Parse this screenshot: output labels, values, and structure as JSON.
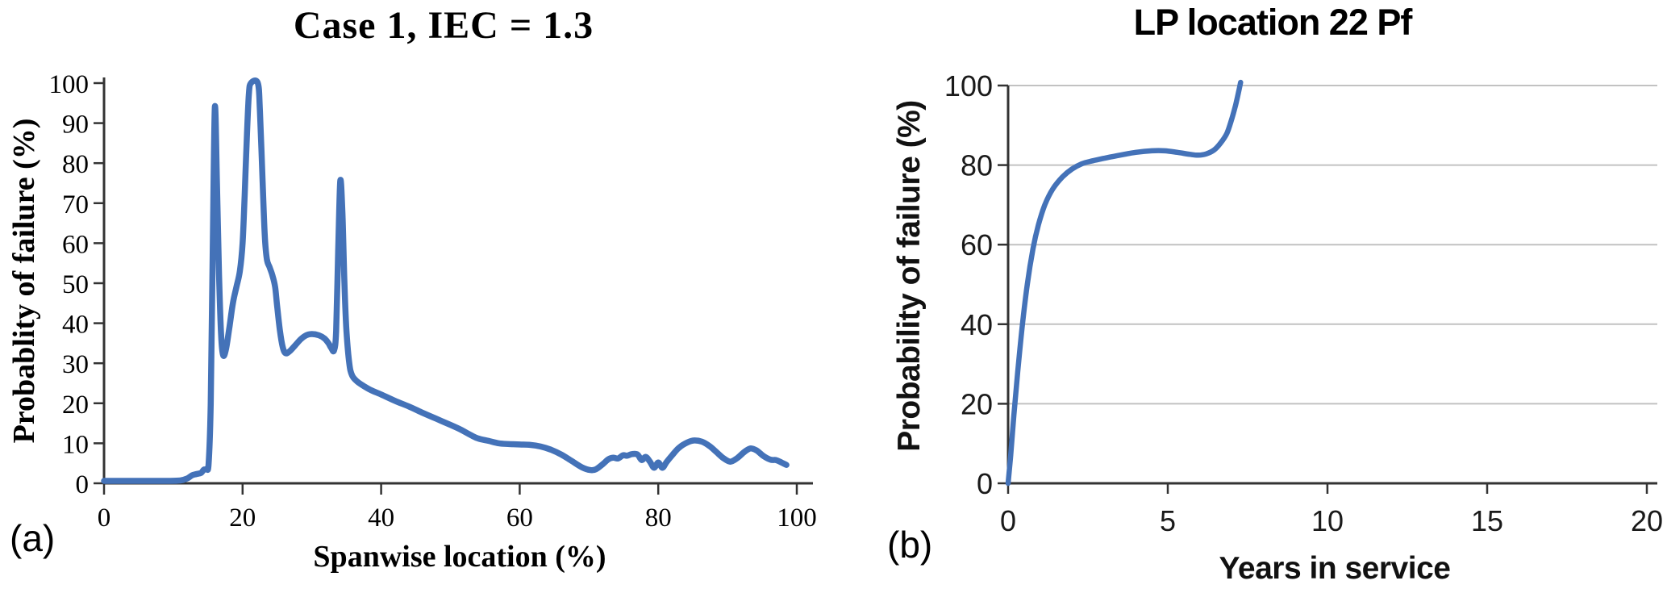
{
  "figure": {
    "background": "#ffffff",
    "line_color": "#4472b8",
    "grid_color": "#c2c2c2",
    "axis_color": "#333333"
  },
  "chart_data": [
    {
      "id": "a",
      "type": "line",
      "panel_label": "(a)",
      "title": "Case 1, IEC = 1.3",
      "xlabel": "Spanwise location (%)",
      "ylabel": "Probablity of failure (%)",
      "xlim": [
        0,
        100
      ],
      "ylim": [
        0,
        100
      ],
      "x_ticks": [
        0,
        20,
        40,
        60,
        80,
        100
      ],
      "y_ticks": [
        0,
        10,
        20,
        30,
        40,
        50,
        60,
        70,
        80,
        90,
        100
      ],
      "grid": "none",
      "legend": "none",
      "line_color": "#4472b8",
      "points": [
        [
          0,
          0.6
        ],
        [
          3,
          0.6
        ],
        [
          6,
          0.6
        ],
        [
          9,
          0.6
        ],
        [
          11,
          0.7
        ],
        [
          12,
          1.2
        ],
        [
          12.7,
          2.0
        ],
        [
          13.3,
          2.3
        ],
        [
          14,
          2.6
        ],
        [
          14.4,
          3.4
        ],
        [
          14.8,
          3.6
        ],
        [
          15.1,
          5
        ],
        [
          15.4,
          20
        ],
        [
          15.7,
          60
        ],
        [
          16,
          94
        ],
        [
          16.3,
          75
        ],
        [
          16.6,
          52
        ],
        [
          16.9,
          37
        ],
        [
          17.2,
          32
        ],
        [
          17.6,
          33.5
        ],
        [
          18.1,
          39
        ],
        [
          18.6,
          45
        ],
        [
          19.1,
          49
        ],
        [
          19.6,
          53
        ],
        [
          20,
          60
        ],
        [
          20.3,
          72
        ],
        [
          20.6,
          86
        ],
        [
          20.9,
          97
        ],
        [
          21.2,
          100
        ],
        [
          22.2,
          100
        ],
        [
          22.5,
          93
        ],
        [
          22.9,
          75
        ],
        [
          23.2,
          62
        ],
        [
          23.5,
          56
        ],
        [
          23.9,
          54
        ],
        [
          24.3,
          52
        ],
        [
          24.7,
          49
        ],
        [
          25,
          44
        ],
        [
          25.4,
          38
        ],
        [
          25.8,
          34
        ],
        [
          26.2,
          32.5
        ],
        [
          26.8,
          33
        ],
        [
          27.6,
          34.5
        ],
        [
          28.4,
          36
        ],
        [
          29.2,
          37
        ],
        [
          30,
          37.3
        ],
        [
          31,
          37
        ],
        [
          31.8,
          36.2
        ],
        [
          32.4,
          35
        ],
        [
          32.8,
          33.8
        ],
        [
          33.2,
          33.2
        ],
        [
          33.5,
          38
        ],
        [
          33.8,
          58
        ],
        [
          34.1,
          75.5
        ],
        [
          34.4,
          68
        ],
        [
          34.7,
          50
        ],
        [
          35,
          38
        ],
        [
          35.4,
          30
        ],
        [
          35.8,
          27
        ],
        [
          36.5,
          25.5
        ],
        [
          37.5,
          24.3
        ],
        [
          38.5,
          23.3
        ],
        [
          40,
          22.2
        ],
        [
          42,
          20.6
        ],
        [
          44,
          19.2
        ],
        [
          46,
          17.6
        ],
        [
          48,
          16.1
        ],
        [
          50,
          14.6
        ],
        [
          51.5,
          13.4
        ],
        [
          53,
          12
        ],
        [
          54,
          11.2
        ],
        [
          55.5,
          10.6
        ],
        [
          57,
          10
        ],
        [
          58.5,
          9.8
        ],
        [
          60,
          9.7
        ],
        [
          61.5,
          9.6
        ],
        [
          63,
          9.2
        ],
        [
          64.5,
          8.4
        ],
        [
          66,
          7.2
        ],
        [
          67.5,
          5.6
        ],
        [
          69,
          4
        ],
        [
          70.2,
          3.3
        ],
        [
          71,
          3.5
        ],
        [
          72,
          4.8
        ],
        [
          72.8,
          6
        ],
        [
          73.5,
          6.4
        ],
        [
          74.2,
          6.2
        ],
        [
          74.9,
          7
        ],
        [
          75.5,
          6.9
        ],
        [
          76.2,
          7.3
        ],
        [
          77,
          7.2
        ],
        [
          77.6,
          5.8
        ],
        [
          78.2,
          6.6
        ],
        [
          78.8,
          5.4
        ],
        [
          79.4,
          3.9
        ],
        [
          80,
          5.2
        ],
        [
          80.6,
          3.9
        ],
        [
          81.2,
          5.3
        ],
        [
          82,
          7
        ],
        [
          83,
          8.9
        ],
        [
          84.2,
          10.2
        ],
        [
          85.2,
          10.7
        ],
        [
          86.3,
          10.4
        ],
        [
          87.4,
          9.3
        ],
        [
          88.4,
          7.8
        ],
        [
          89.4,
          6.3
        ],
        [
          90.4,
          5.4
        ],
        [
          91.4,
          6.3
        ],
        [
          92.4,
          7.8
        ],
        [
          93.3,
          8.7
        ],
        [
          94.2,
          8.2
        ],
        [
          95.2,
          6.8
        ],
        [
          96.2,
          5.9
        ],
        [
          97,
          5.8
        ],
        [
          97.8,
          5.2
        ],
        [
          98.5,
          4.6
        ]
      ]
    },
    {
      "id": "b",
      "type": "line",
      "panel_label": "(b)",
      "title": "LP location 22 Pf",
      "xlabel": "Years in service",
      "ylabel": "Probability of failure (%)",
      "xlim": [
        0,
        20
      ],
      "ylim": [
        0,
        100
      ],
      "x_ticks": [
        0,
        5,
        10,
        15,
        20
      ],
      "y_ticks": [
        0,
        20,
        40,
        60,
        80,
        100
      ],
      "grid": "horizontal",
      "legend": "none",
      "line_color": "#4472b8",
      "points": [
        [
          0,
          0
        ],
        [
          0.08,
          7
        ],
        [
          0.18,
          17
        ],
        [
          0.3,
          28
        ],
        [
          0.45,
          40
        ],
        [
          0.6,
          50
        ],
        [
          0.78,
          59
        ],
        [
          0.95,
          65
        ],
        [
          1.15,
          70
        ],
        [
          1.4,
          74
        ],
        [
          1.7,
          77
        ],
        [
          2.0,
          79
        ],
        [
          2.3,
          80.3
        ],
        [
          2.6,
          81
        ],
        [
          3.0,
          81.7
        ],
        [
          3.5,
          82.5
        ],
        [
          4.0,
          83.2
        ],
        [
          4.5,
          83.6
        ],
        [
          4.9,
          83.6
        ],
        [
          5.3,
          83.2
        ],
        [
          5.7,
          82.7
        ],
        [
          5.95,
          82.5
        ],
        [
          6.2,
          82.8
        ],
        [
          6.45,
          83.8
        ],
        [
          6.65,
          85.5
        ],
        [
          6.85,
          88
        ],
        [
          7.0,
          91.5
        ],
        [
          7.12,
          95
        ],
        [
          7.22,
          98.5
        ],
        [
          7.28,
          100.8
        ]
      ]
    }
  ]
}
